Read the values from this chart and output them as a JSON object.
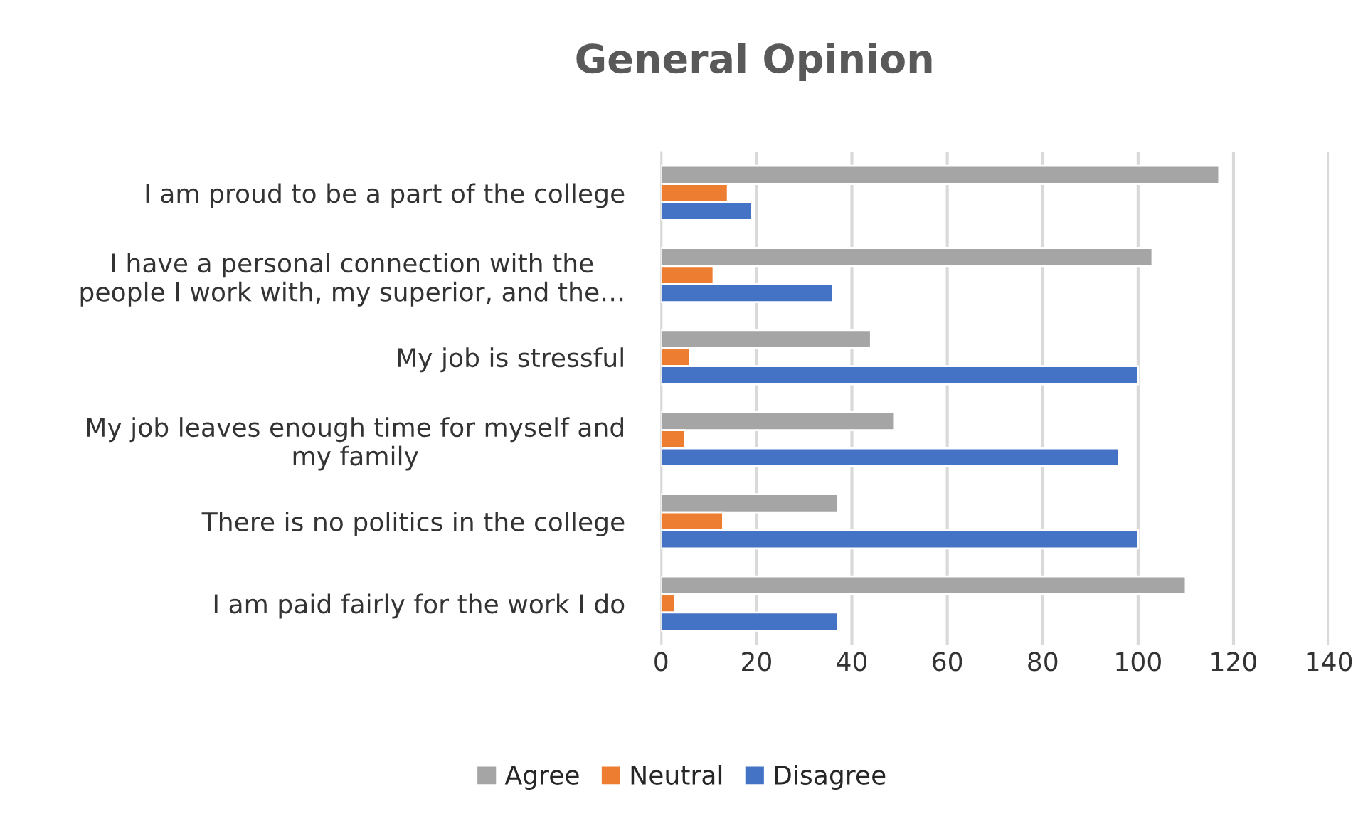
{
  "chart_data": {
    "type": "bar",
    "orientation": "horizontal",
    "title": "General Opinion",
    "categories": [
      "I am proud to be a part of the college",
      "I have a personal connection with the\npeople I work with, my superior, and the…",
      "My job is stressful",
      "My job leaves enough time for myself and\nmy family",
      "There is no politics in the college",
      "I am paid fairly for the work I do"
    ],
    "series": [
      {
        "name": "Agree",
        "color": "#a5a5a5",
        "values": [
          117,
          103,
          44,
          49,
          37,
          110
        ]
      },
      {
        "name": "Neutral",
        "color": "#ed7d31",
        "values": [
          14,
          11,
          6,
          5,
          13,
          3
        ]
      },
      {
        "name": "Disagree",
        "color": "#4472c4",
        "values": [
          19,
          36,
          100,
          96,
          100,
          37
        ]
      }
    ],
    "xlim": [
      0,
      140
    ],
    "xticks": [
      0,
      20,
      40,
      60,
      80,
      100,
      120,
      140
    ],
    "grid": "x",
    "legend": "bottom"
  }
}
